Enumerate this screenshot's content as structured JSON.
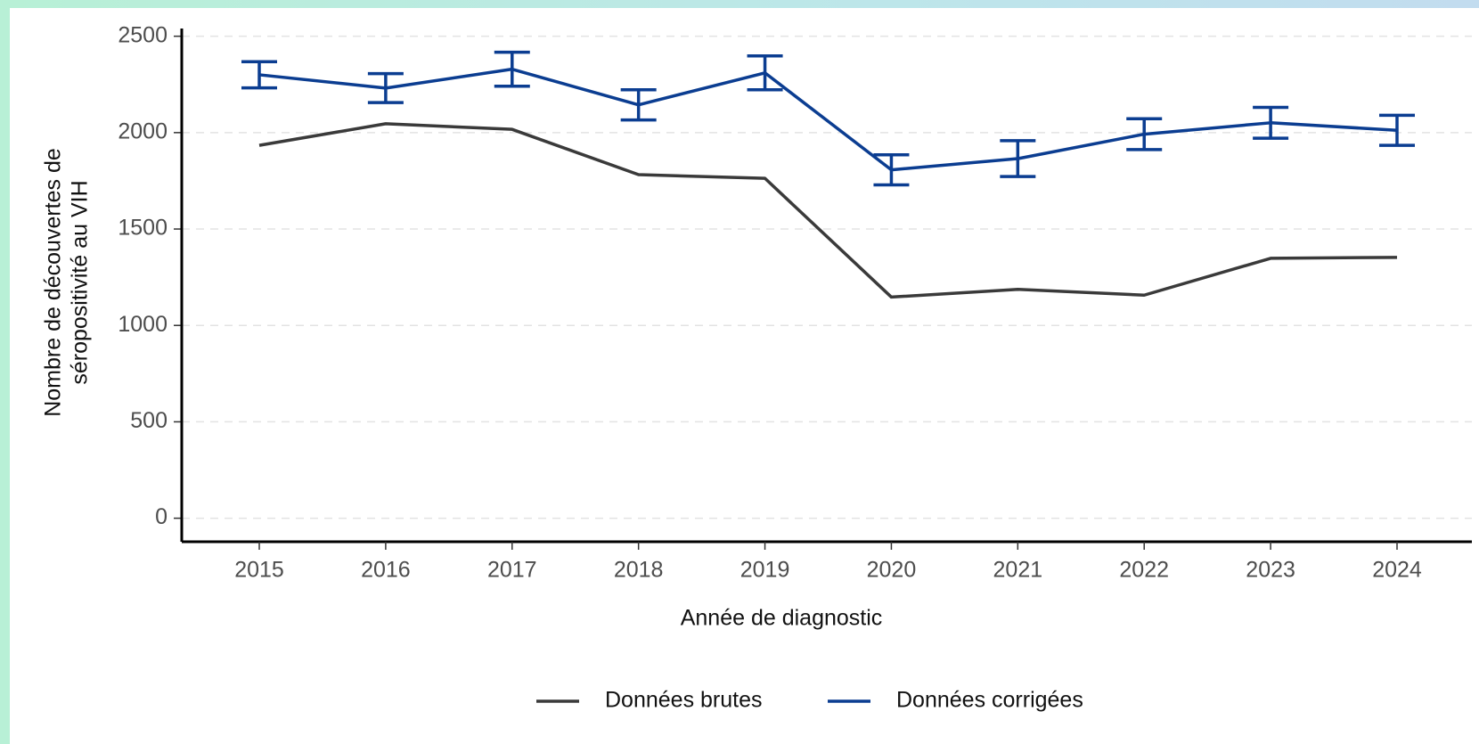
{
  "chart_data": {
    "type": "line",
    "xlabel": "Année de diagnostic",
    "ylabel": [
      "Nombre de découvertes de",
      "séropositivité au VIH"
    ],
    "categories": [
      "2015",
      "2016",
      "2017",
      "2018",
      "2019",
      "2020",
      "2021",
      "2022",
      "2023",
      "2024"
    ],
    "series": [
      {
        "name": "Données brutes",
        "color": "#3a3a3a",
        "values": [
          1934,
          2046,
          2017,
          1782,
          1763,
          1147,
          1187,
          1157,
          1348,
          1353
        ]
      },
      {
        "name": "Données corrigées",
        "color": "#0b3d91",
        "values": [
          2300,
          2231,
          2329,
          2144,
          2310,
          1807,
          1865,
          1992,
          2051,
          2012
        ],
        "errors": [
          68,
          75,
          88,
          78,
          88,
          78,
          93,
          80,
          80,
          78
        ]
      }
    ],
    "ylim": [
      -122,
      2540
    ],
    "yticks": [
      0,
      500,
      1000,
      1500,
      2000,
      2500
    ],
    "grid": true,
    "legend": "bottom"
  }
}
